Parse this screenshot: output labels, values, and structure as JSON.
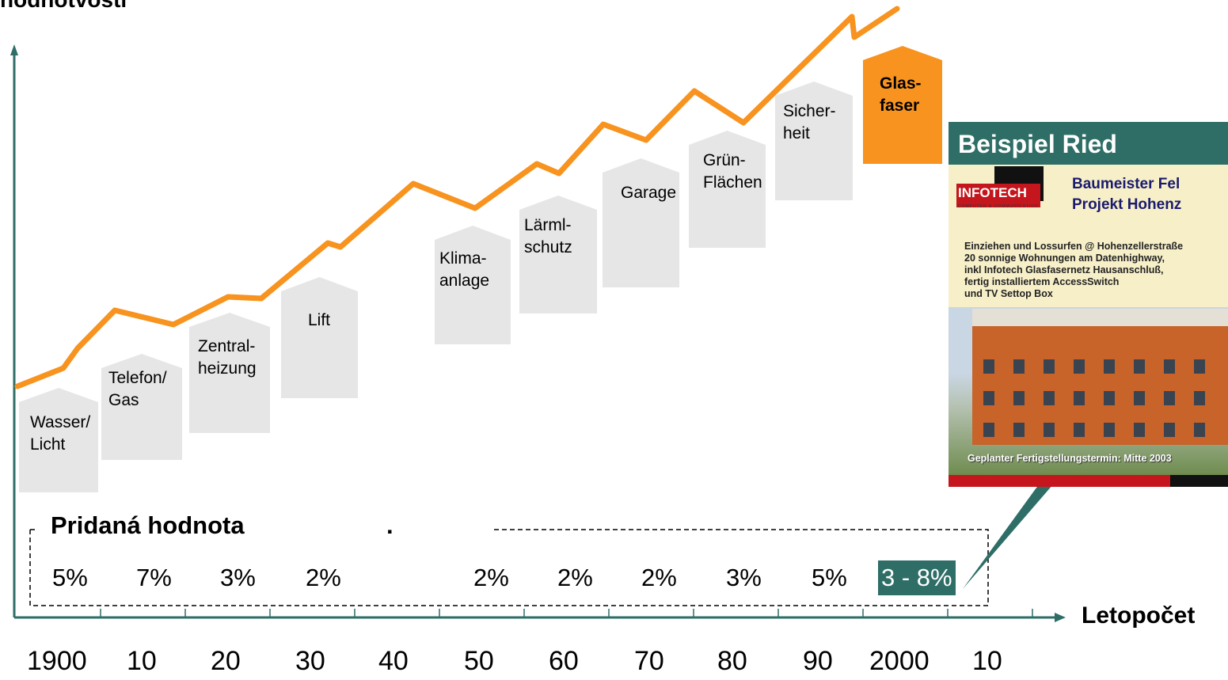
{
  "colors": {
    "line": "#f7931e",
    "house": "#e6e6e6",
    "house_highlight": "#f7931e",
    "accent": "#2e6e67",
    "axis": "#2e6e67"
  },
  "chart_data": {
    "type": "line",
    "title": "hodnotvosti",
    "xlabel": "Letopočet",
    "ylabel": "",
    "x": [
      "1900",
      "10",
      "20",
      "30",
      "40",
      "50",
      "60",
      "70",
      "80",
      "90",
      "2000",
      "10"
    ],
    "houses": [
      {
        "label": "Wasser/\nLicht",
        "value": "5%"
      },
      {
        "label": "Telefon/\nGas",
        "value": "7%"
      },
      {
        "label": "Zentral-\nheizung",
        "value": "3%"
      },
      {
        "label": "Lift",
        "value": "2%"
      },
      {
        "label": "Klima-\nanlage",
        "value": "2%"
      },
      {
        "label": "Lärml-\nschutz",
        "value": "2%"
      },
      {
        "label": "Garage",
        "value": "2%"
      },
      {
        "label": "Grün-\nFlächen",
        "value": "3%"
      },
      {
        "label": "Sicher-\nheit",
        "value": "5%"
      },
      {
        "label": "Glas-\nfaser",
        "value": "3 - 8%",
        "highlight": true
      }
    ],
    "grid": false
  },
  "section": {
    "title": "Pridaná hodnota",
    "dot": "."
  },
  "inset": {
    "title": "Beispiel Ried",
    "logo": "INFOTECH",
    "logo_sub": "COMPUTER & COMMUNICATION",
    "project": "Baumeister Fel\nProjekt Hohenz",
    "description": "Einziehen und Lossurfen @ Hohenzellerstraße\n20 sonnige Wohnungen am Datenhighway,\ninkl Infotech Glasfasernetz Hausanschluß,\nfertig installiertem AccessSwitch\nund TV Settop Box",
    "footer": "Geplanter Fertigstellungstermin: Mitte 2003"
  }
}
